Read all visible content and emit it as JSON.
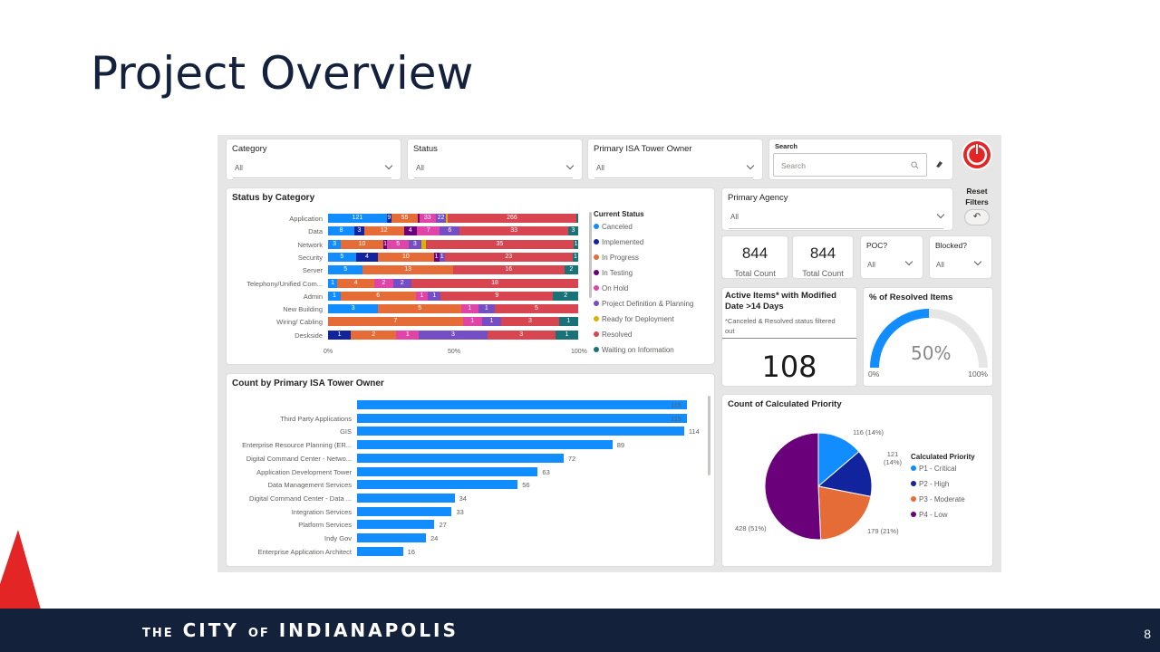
{
  "slide": {
    "title": "Project Overview",
    "page_number": "8"
  },
  "footer": {
    "the": "THE",
    "city": "CITY",
    "of": "OF",
    "name": "INDIANAPOLIS"
  },
  "colors": {
    "accent": "#118dff",
    "footer_bg": "#13213a",
    "red_triangle": "#e32526"
  },
  "slicers": {
    "category": {
      "label": "Category",
      "value": "All"
    },
    "status": {
      "label": "Status",
      "value": "All"
    },
    "owner": {
      "label": "Primary ISA Tower Owner",
      "value": "All"
    },
    "search": {
      "label": "Search",
      "placeholder": "Search"
    },
    "agency": {
      "label": "Primary Agency",
      "value": "All"
    },
    "poc": {
      "label": "POC?",
      "value": "All"
    },
    "blocked": {
      "label": "Blocked?",
      "value": "All"
    }
  },
  "reset": {
    "label": "Reset Filters"
  },
  "kpis": {
    "total1": {
      "value": "844",
      "label": "Total Count"
    },
    "total2": {
      "value": "844",
      "label": "Total Count"
    },
    "active": {
      "title": "Active Items* with Modified Date >14 Days",
      "note": "*Canceled & Resolved status filtered out",
      "value": "108"
    }
  },
  "gauge": {
    "title": "% of Resolved Items",
    "value": "50%",
    "min": "0%",
    "max": "100%",
    "fraction": 0.5
  },
  "status_chart": {
    "title": "Status by Category",
    "legend_title": "Current Status",
    "axis": [
      "0%",
      "50%",
      "100%"
    ],
    "statuses": [
      {
        "name": "Canceled",
        "color": "#118dff"
      },
      {
        "name": "Implemented",
        "color": "#12239e"
      },
      {
        "name": "In Progress",
        "color": "#e66c37"
      },
      {
        "name": "In Testing",
        "color": "#6b007b"
      },
      {
        "name": "On Hold",
        "color": "#e044a7"
      },
      {
        "name": "Project Definition & Planning",
        "color": "#744ec2"
      },
      {
        "name": "Ready for Deployment",
        "color": "#d9b300"
      },
      {
        "name": "Resolved",
        "color": "#d64550"
      },
      {
        "name": "Waiting on Information",
        "color": "#197278"
      }
    ],
    "rows": [
      {
        "category": "Application",
        "segments": [
          [
            0,
            121
          ],
          [
            1,
            9
          ],
          [
            2,
            55
          ],
          [
            3,
            3
          ],
          [
            4,
            33
          ],
          [
            5,
            22
          ],
          [
            6,
            2
          ],
          [
            7,
            266
          ],
          [
            8,
            3
          ]
        ],
        "labels": [
          "121",
          "9",
          "55",
          "",
          "33",
          "22",
          "",
          "266",
          ""
        ]
      },
      {
        "category": "Data",
        "segments": [
          [
            0,
            8
          ],
          [
            1,
            3
          ],
          [
            2,
            12
          ],
          [
            3,
            4
          ],
          [
            4,
            7
          ],
          [
            5,
            6
          ],
          [
            7,
            33
          ],
          [
            8,
            3
          ]
        ],
        "labels": [
          "8",
          "3",
          "12",
          "4",
          "7",
          "6",
          "33",
          "3"
        ]
      },
      {
        "category": "Network",
        "segments": [
          [
            0,
            3
          ],
          [
            2,
            10
          ],
          [
            3,
            1
          ],
          [
            4,
            5
          ],
          [
            5,
            3
          ],
          [
            6,
            1
          ],
          [
            7,
            35
          ],
          [
            8,
            1
          ]
        ],
        "labels": [
          "3",
          "10",
          "1",
          "5",
          "3",
          "",
          "35",
          "1"
        ]
      },
      {
        "category": "Security",
        "segments": [
          [
            0,
            5
          ],
          [
            1,
            4
          ],
          [
            2,
            10
          ],
          [
            3,
            1
          ],
          [
            5,
            1
          ],
          [
            7,
            23
          ],
          [
            8,
            1
          ]
        ],
        "labels": [
          "5",
          "4",
          "10",
          "1",
          "1",
          "23",
          "1"
        ]
      },
      {
        "category": "Server",
        "segments": [
          [
            0,
            5
          ],
          [
            2,
            13
          ],
          [
            7,
            16
          ],
          [
            8,
            2
          ]
        ],
        "labels": [
          "5",
          "13",
          "16",
          "2"
        ]
      },
      {
        "category": "Telephony/Unified Com...",
        "segments": [
          [
            0,
            1
          ],
          [
            2,
            4
          ],
          [
            4,
            2
          ],
          [
            5,
            2
          ],
          [
            7,
            18
          ]
        ],
        "labels": [
          "1",
          "4",
          "2",
          "2",
          "18"
        ]
      },
      {
        "category": "Admin",
        "segments": [
          [
            0,
            1
          ],
          [
            2,
            6
          ],
          [
            4,
            1
          ],
          [
            5,
            1
          ],
          [
            7,
            9
          ],
          [
            8,
            2
          ]
        ],
        "labels": [
          "1",
          "6",
          "1",
          "1",
          "9",
          "2"
        ]
      },
      {
        "category": "New Building",
        "segments": [
          [
            0,
            3
          ],
          [
            2,
            5
          ],
          [
            4,
            1
          ],
          [
            5,
            1
          ],
          [
            7,
            5
          ]
        ],
        "labels": [
          "3",
          "5",
          "1",
          "1",
          "5"
        ]
      },
      {
        "category": "Wiring/ Cabling",
        "segments": [
          [
            2,
            7
          ],
          [
            4,
            1
          ],
          [
            5,
            1
          ],
          [
            7,
            3
          ],
          [
            8,
            1
          ]
        ],
        "labels": [
          "7",
          "1",
          "1",
          "3",
          "1"
        ]
      },
      {
        "category": "Deskside",
        "segments": [
          [
            1,
            1
          ],
          [
            2,
            2
          ],
          [
            4,
            1
          ],
          [
            5,
            3
          ],
          [
            7,
            3
          ],
          [
            8,
            1
          ]
        ],
        "labels": [
          "1",
          "2",
          "1",
          "3",
          "3",
          "1"
        ]
      }
    ]
  },
  "owner_chart": {
    "title": "Count by Primary ISA Tower Owner",
    "max": 115,
    "rows": [
      {
        "label": "",
        "value": 115
      },
      {
        "label": "Third Party Applications",
        "value": 115
      },
      {
        "label": "GIS",
        "value": 114
      },
      {
        "label": "Enterprise Resource Planning (ER...",
        "value": 89
      },
      {
        "label": "Digital Command Center - Netwo...",
        "value": 72
      },
      {
        "label": "Application Development Tower",
        "value": 63
      },
      {
        "label": "Data Management Services",
        "value": 56
      },
      {
        "label": "Digital Command Center - Data ...",
        "value": 34
      },
      {
        "label": "Integration Services",
        "value": 33
      },
      {
        "label": "Platform Services",
        "value": 27
      },
      {
        "label": "Indy Gov",
        "value": 24
      },
      {
        "label": "Enterprise Application Architect",
        "value": 16
      }
    ]
  },
  "chart_data": {
    "type": "pie",
    "title": "Count of Calculated Priority",
    "legend_title": "Calculated Priority",
    "slices": [
      {
        "name": "P1 - Critical",
        "value": 116,
        "label": "116 (14%)",
        "color": "#118dff"
      },
      {
        "name": "P2 - High",
        "value": 121,
        "label": "121 (14%)",
        "color": "#12239e"
      },
      {
        "name": "P3 - Moderate",
        "value": 179,
        "label": "179 (21%)",
        "color": "#e66c37"
      },
      {
        "name": "P4 - Low",
        "value": 428,
        "label": "428 (51%)",
        "color": "#6b007b"
      }
    ]
  }
}
